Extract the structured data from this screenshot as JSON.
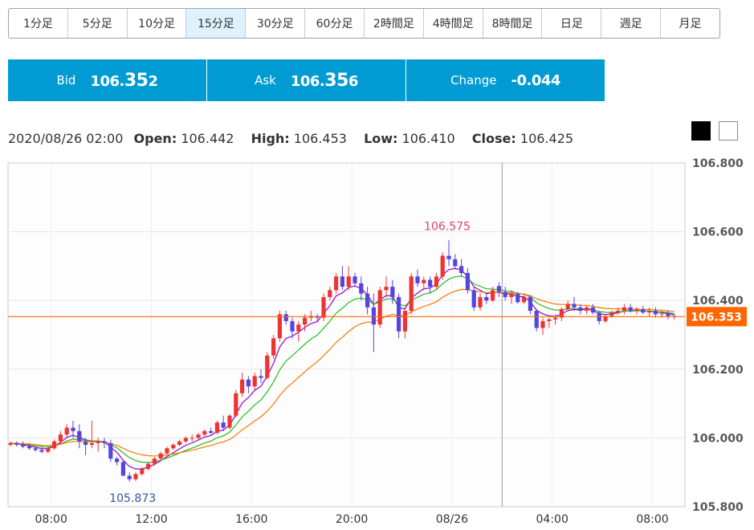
{
  "timeframes": [
    {
      "label": "1分足",
      "active": false
    },
    {
      "label": "5分足",
      "active": false
    },
    {
      "label": "10分足",
      "active": false
    },
    {
      "label": "15分足",
      "active": true
    },
    {
      "label": "30分足",
      "active": false
    },
    {
      "label": "60分足",
      "active": false
    },
    {
      "label": "2時間足",
      "active": false
    },
    {
      "label": "4時間足",
      "active": false
    },
    {
      "label": "8時間足",
      "active": false
    },
    {
      "label": "日足",
      "active": false
    },
    {
      "label": "週足",
      "active": false
    },
    {
      "label": "月足",
      "active": false
    }
  ],
  "quote": {
    "bid_label": "Bid",
    "bid_prefix": "106.",
    "bid_big": "35",
    "bid_suffix": "2",
    "ask_label": "Ask",
    "ask_prefix": "106.",
    "ask_big": "35",
    "ask_suffix": "6",
    "change_label": "Change",
    "change_value": "-0.044"
  },
  "ohlc_info": {
    "datetime": "2020/08/26 02:00",
    "open_label": "Open:",
    "open": "106.442",
    "high_label": "High:",
    "high": "106.453",
    "low_label": "Low:",
    "low": "106.410",
    "close_label": "Close:",
    "close": "106.425"
  },
  "theme_toggle": {
    "dark": "black-theme-icon",
    "light": "white-theme-icon"
  },
  "colors": {
    "up": "#ee3333",
    "down": "#5544dd",
    "ma_short": "#9900cc",
    "ma_mid": "#22bb22",
    "ma_long": "#ff7700",
    "current_price": "#ff6600",
    "accent": "#009bd3"
  },
  "chart_data": {
    "type": "candlestick",
    "y_range": [
      105.8,
      106.8
    ],
    "y_ticks": [
      "106.800",
      "106.600",
      "106.400",
      "106.200",
      "106.000",
      "105.800"
    ],
    "x_ticks": [
      {
        "label": "08:00",
        "index": 6.5
      },
      {
        "label": "12:00",
        "index": 22.5
      },
      {
        "label": "16:00",
        "index": 38.5
      },
      {
        "label": "20:00",
        "index": 54.5
      },
      {
        "label": "08/26",
        "index": 70.5
      },
      {
        "label": "04:00",
        "index": 86.5
      },
      {
        "label": "08:00",
        "index": 102.5
      }
    ],
    "crosshair_index": 78.5,
    "current_price": 106.353,
    "current_price_label": "106.353",
    "max_marker": {
      "label": "106.575",
      "index": 70,
      "value": 106.575
    },
    "min_marker": {
      "label": "105.873",
      "index": 19,
      "value": 105.873
    },
    "candles": [
      [
        105.98,
        105.99,
        105.975,
        105.985
      ],
      [
        105.985,
        105.99,
        105.975,
        105.98
      ],
      [
        105.98,
        105.99,
        105.97,
        105.975
      ],
      [
        105.975,
        105.985,
        105.965,
        105.97
      ],
      [
        105.97,
        105.975,
        105.96,
        105.965
      ],
      [
        105.965,
        105.975,
        105.955,
        105.96
      ],
      [
        105.96,
        105.975,
        105.955,
        105.97
      ],
      [
        105.97,
        105.995,
        105.965,
        105.99
      ],
      [
        105.99,
        106.02,
        105.98,
        106.01
      ],
      [
        106.01,
        106.04,
        106.0,
        106.03
      ],
      [
        106.03,
        106.05,
        106.0,
        106.02
      ],
      [
        106.02,
        106.04,
        105.97,
        105.99
      ],
      [
        105.99,
        106.0,
        105.95,
        105.98
      ],
      [
        105.98,
        106.05,
        105.97,
        105.985
      ],
      [
        105.985,
        106.0,
        105.96,
        105.99
      ],
      [
        105.99,
        106.0,
        105.97,
        105.985
      ],
      [
        105.985,
        105.995,
        105.93,
        105.94
      ],
      [
        105.94,
        105.945,
        105.92,
        105.93
      ],
      [
        105.93,
        105.935,
        105.89,
        105.89
      ],
      [
        105.89,
        105.9,
        105.873,
        105.88
      ],
      [
        105.88,
        105.9,
        105.875,
        105.895
      ],
      [
        105.895,
        105.915,
        105.89,
        105.91
      ],
      [
        105.91,
        105.93,
        105.905,
        105.925
      ],
      [
        105.925,
        105.945,
        105.92,
        105.94
      ],
      [
        105.94,
        105.96,
        105.935,
        105.955
      ],
      [
        105.955,
        105.975,
        105.95,
        105.97
      ],
      [
        105.97,
        105.985,
        105.965,
        105.98
      ],
      [
        105.98,
        105.995,
        105.975,
        105.99
      ],
      [
        105.99,
        106.005,
        105.985,
        106.0
      ],
      [
        106.0,
        106.01,
        105.99,
        106.0
      ],
      [
        106.0,
        106.015,
        105.995,
        106.01
      ],
      [
        106.01,
        106.025,
        106.005,
        106.02
      ],
      [
        106.02,
        106.03,
        106.01,
        106.015
      ],
      [
        106.015,
        106.05,
        106.01,
        106.045
      ],
      [
        106.045,
        106.065,
        106.02,
        106.03
      ],
      [
        106.03,
        106.07,
        106.025,
        106.065
      ],
      [
        106.065,
        106.14,
        106.06,
        106.13
      ],
      [
        106.13,
        106.19,
        106.12,
        106.17
      ],
      [
        106.17,
        106.18,
        106.13,
        106.15
      ],
      [
        106.15,
        106.19,
        106.14,
        106.18
      ],
      [
        106.18,
        106.2,
        106.16,
        106.175
      ],
      [
        106.175,
        106.25,
        106.17,
        106.24
      ],
      [
        106.24,
        106.3,
        106.23,
        106.29
      ],
      [
        106.29,
        106.37,
        106.28,
        106.36
      ],
      [
        106.36,
        106.37,
        106.33,
        106.34
      ],
      [
        106.34,
        106.35,
        106.29,
        106.31
      ],
      [
        106.31,
        106.34,
        106.28,
        106.33
      ],
      [
        106.33,
        106.36,
        106.31,
        106.35
      ],
      [
        106.35,
        106.37,
        106.34,
        106.355
      ],
      [
        106.355,
        106.36,
        106.34,
        106.35
      ],
      [
        106.35,
        106.42,
        106.34,
        106.41
      ],
      [
        106.41,
        106.44,
        106.4,
        106.43
      ],
      [
        106.43,
        106.48,
        106.42,
        106.47
      ],
      [
        106.47,
        106.5,
        106.43,
        106.44
      ],
      [
        106.44,
        106.5,
        106.43,
        106.47
      ],
      [
        106.47,
        106.48,
        106.44,
        106.45
      ],
      [
        106.45,
        106.47,
        106.4,
        106.42
      ],
      [
        106.42,
        106.44,
        106.36,
        106.38
      ],
      [
        106.38,
        106.42,
        106.25,
        106.33
      ],
      [
        106.33,
        106.44,
        106.32,
        106.43
      ],
      [
        106.43,
        106.47,
        106.41,
        106.44
      ],
      [
        106.44,
        106.46,
        106.39,
        106.41
      ],
      [
        106.41,
        106.42,
        106.29,
        106.31
      ],
      [
        106.31,
        106.38,
        106.29,
        106.37
      ],
      [
        106.37,
        106.48,
        106.36,
        106.47
      ],
      [
        106.47,
        106.49,
        106.44,
        106.45
      ],
      [
        106.45,
        106.47,
        106.43,
        106.46
      ],
      [
        106.46,
        106.47,
        106.42,
        106.44
      ],
      [
        106.44,
        106.48,
        106.43,
        106.47
      ],
      [
        106.47,
        106.54,
        106.46,
        106.53
      ],
      [
        106.53,
        106.575,
        106.5,
        106.52
      ],
      [
        106.52,
        106.535,
        106.49,
        106.5
      ],
      [
        106.5,
        106.52,
        106.47,
        106.48
      ],
      [
        106.48,
        106.495,
        106.42,
        106.43
      ],
      [
        106.43,
        106.44,
        106.37,
        106.38
      ],
      [
        106.38,
        106.42,
        106.37,
        106.41
      ],
      [
        106.41,
        106.42,
        106.39,
        106.4
      ],
      [
        106.4,
        106.44,
        106.395,
        106.43
      ],
      [
        106.442,
        106.453,
        106.41,
        106.425
      ],
      [
        106.425,
        106.44,
        106.4,
        106.41
      ],
      [
        106.41,
        106.43,
        106.39,
        106.42
      ],
      [
        106.42,
        106.425,
        106.39,
        106.395
      ],
      [
        106.395,
        106.42,
        106.39,
        106.41
      ],
      [
        106.41,
        106.415,
        106.36,
        106.37
      ],
      [
        106.37,
        106.375,
        106.31,
        106.32
      ],
      [
        106.32,
        106.35,
        106.3,
        106.34
      ],
      [
        106.34,
        106.35,
        106.32,
        106.345
      ],
      [
        106.345,
        106.36,
        106.33,
        106.35
      ],
      [
        106.35,
        106.38,
        106.34,
        106.375
      ],
      [
        106.375,
        106.4,
        106.37,
        106.39
      ],
      [
        106.39,
        106.41,
        106.37,
        106.38
      ],
      [
        106.38,
        106.39,
        106.36,
        106.37
      ],
      [
        106.37,
        106.385,
        106.36,
        106.38
      ],
      [
        106.38,
        106.39,
        106.36,
        106.365
      ],
      [
        106.365,
        106.37,
        106.33,
        106.34
      ],
      [
        106.34,
        106.36,
        106.335,
        106.355
      ],
      [
        106.355,
        106.37,
        106.35,
        106.365
      ],
      [
        106.365,
        106.38,
        106.36,
        106.37
      ],
      [
        106.37,
        106.39,
        106.36,
        106.38
      ],
      [
        106.38,
        106.39,
        106.365,
        106.37
      ],
      [
        106.37,
        106.38,
        106.36,
        106.375
      ],
      [
        106.375,
        106.385,
        106.36,
        106.365
      ],
      [
        106.365,
        106.38,
        106.355,
        106.37
      ],
      [
        106.37,
        106.38,
        106.35,
        106.36
      ],
      [
        106.36,
        106.37,
        106.35,
        106.362
      ],
      [
        106.362,
        106.37,
        106.345,
        106.355
      ],
      [
        106.355,
        106.36,
        106.345,
        106.353
      ]
    ]
  }
}
